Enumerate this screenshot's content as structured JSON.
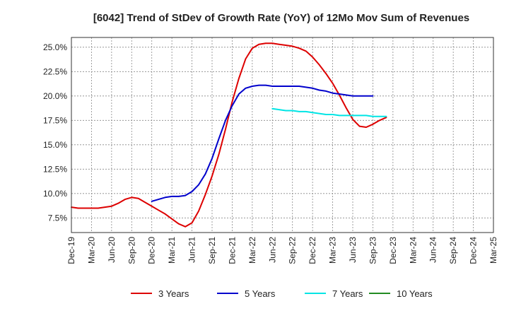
{
  "chart_data": {
    "type": "line",
    "title": "[6042]  Trend of StDev of Growth Rate (YoY) of 12Mo Mov Sum of Revenues",
    "xlabel": "",
    "ylabel": "",
    "ylim": [
      6.0,
      26.0
    ],
    "y_ticks": [
      7.5,
      10.0,
      12.5,
      15.0,
      17.5,
      20.0,
      22.5,
      25.0
    ],
    "y_tick_labels": [
      "7.5%",
      "10.0%",
      "12.5%",
      "15.0%",
      "17.5%",
      "20.0%",
      "22.5%",
      "25.0%"
    ],
    "x_ticks": [
      "Dec-19",
      "Mar-20",
      "Jun-20",
      "Sep-20",
      "Dec-20",
      "Mar-21",
      "Jun-21",
      "Sep-21",
      "Dec-21",
      "Mar-22",
      "Jun-22",
      "Sep-22",
      "Dec-22",
      "Mar-23",
      "Jun-23",
      "Sep-23",
      "Dec-23",
      "Mar-24",
      "Jun-24",
      "Sep-24",
      "Dec-24",
      "Mar-25"
    ],
    "grid": true,
    "legend_position": "bottom",
    "series": [
      {
        "name": "3 Years",
        "color": "#dd0000",
        "start_index": 0,
        "values": [
          8.6,
          8.5,
          8.5,
          8.5,
          8.5,
          8.6,
          8.7,
          9.0,
          9.4,
          9.6,
          9.5,
          9.1,
          8.7,
          8.3,
          7.9,
          7.4,
          6.9,
          6.6,
          7.0,
          8.2,
          9.9,
          11.8,
          14.0,
          16.6,
          19.4,
          21.8,
          23.8,
          24.9,
          25.3,
          25.4,
          25.4,
          25.3,
          25.2,
          25.1,
          24.9,
          24.6,
          24.0,
          23.2,
          22.3,
          21.3,
          20.1,
          18.8,
          17.6,
          16.9,
          16.8,
          17.1,
          17.5,
          17.8
        ]
      },
      {
        "name": "5 Years",
        "color": "#0000cc",
        "start_index": 12,
        "values": [
          9.2,
          9.4,
          9.6,
          9.7,
          9.7,
          9.8,
          10.2,
          10.9,
          12.0,
          13.6,
          15.6,
          17.5,
          19.0,
          20.2,
          20.8,
          21.0,
          21.1,
          21.1,
          21.0,
          21.0,
          21.0,
          21.0,
          21.0,
          20.9,
          20.8,
          20.6,
          20.5,
          20.3,
          20.2,
          20.1,
          20.0,
          20.0,
          20.0,
          20.0
        ]
      },
      {
        "name": "7 Years",
        "color": "#00e5e5",
        "start_index": 30,
        "values": [
          18.7,
          18.6,
          18.5,
          18.5,
          18.4,
          18.4,
          18.3,
          18.2,
          18.1,
          18.1,
          18.0,
          18.0,
          18.0,
          18.0,
          18.0,
          17.9,
          17.9,
          17.9
        ]
      },
      {
        "name": "10 Years",
        "color": "#228b22",
        "start_index": 0,
        "values": []
      }
    ]
  }
}
